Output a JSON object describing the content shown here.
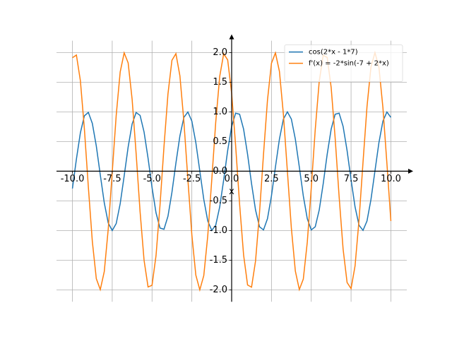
{
  "chart_data": {
    "type": "line",
    "x_label": "x",
    "x": [
      -10,
      -9.75,
      -9.5,
      -9.25,
      -9,
      -8.75,
      -8.5,
      -8.25,
      -8,
      -7.75,
      -7.5,
      -7.25,
      -7,
      -6.75,
      -6.5,
      -6.25,
      -6,
      -5.75,
      -5.5,
      -5.25,
      -5,
      -4.75,
      -4.5,
      -4.25,
      -4,
      -3.75,
      -3.5,
      -3.25,
      -3,
      -2.75,
      -2.5,
      -2.25,
      -2,
      -1.75,
      -1.5,
      -1.25,
      -1,
      -0.75,
      -0.5,
      -0.25,
      0,
      0.25,
      0.5,
      0.75,
      1,
      1.25,
      1.5,
      1.75,
      2,
      2.25,
      2.5,
      2.75,
      3,
      3.25,
      3.5,
      3.75,
      4,
      4.25,
      4.5,
      4.75,
      5,
      5.25,
      5.5,
      5.75,
      6,
      6.25,
      6.5,
      6.75,
      7,
      7.25,
      7.5,
      7.75,
      8,
      8.25,
      8.5,
      8.75,
      9,
      9.25,
      9.5,
      9.75,
      10
    ],
    "series": [
      {
        "name": "cos(2*x - 1*7)",
        "color": "#1f77b4",
        "values": [
          -0.292,
          0.203,
          0.647,
          0.933,
          0.991,
          0.806,
          0.424,
          -0.062,
          -0.533,
          -0.873,
          -1.0,
          -0.882,
          -0.548,
          -0.08,
          0.408,
          0.796,
          0.989,
          0.94,
          0.66,
          0.219,
          -0.275,
          -0.702,
          -0.958,
          -0.979,
          -0.76,
          -0.355,
          0.137,
          0.595,
          0.907,
          0.998,
          0.844,
          0.483,
          0.004,
          -0.476,
          -0.839,
          -0.997,
          -0.911,
          -0.602,
          -0.146,
          0.347,
          0.754,
          0.977,
          0.96,
          0.709,
          0.284,
          -0.211,
          -0.654,
          -0.937,
          -0.99,
          -0.801,
          -0.416,
          0.071,
          0.54,
          0.878,
          1.0,
          0.878,
          0.54,
          0.071,
          -0.416,
          -0.801,
          -0.99,
          -0.937,
          -0.654,
          -0.211,
          0.284,
          0.709,
          0.96,
          0.977,
          0.754,
          0.347,
          -0.146,
          -0.602,
          -0.911,
          -0.997,
          -0.839,
          -0.476,
          0.004,
          0.483,
          0.844,
          0.998,
          0.907
        ]
      },
      {
        "name": "f'(x) = -2*sin(-7 + 2*x)",
        "color": "#ff7f0e",
        "values": [
          1.913,
          1.958,
          1.525,
          0.718,
          -0.265,
          -1.183,
          -1.811,
          -1.996,
          -1.692,
          -0.974,
          -0.018,
          0.942,
          1.673,
          1.994,
          1.826,
          1.211,
          0.3,
          -0.685,
          -1.502,
          -1.951,
          -1.923,
          -1.424,
          -0.576,
          0.413,
          1.301,
          1.87,
          1.981,
          1.608,
          0.84,
          -0.133,
          -1.073,
          -1.751,
          -2.0,
          -1.759,
          -1.088,
          -0.15,
          0.824,
          1.597,
          1.979,
          1.876,
          1.314,
          0.43,
          -0.559,
          -1.411,
          -1.918,
          -1.955,
          -1.514,
          -0.702,
          0.282,
          1.197,
          1.819,
          1.995,
          1.683,
          0.959,
          0,
          -0.959,
          -1.683,
          -1.995,
          -1.819,
          -1.197,
          -0.282,
          0.702,
          1.514,
          1.955,
          1.918,
          1.411,
          0.559,
          -0.43,
          -1.314,
          -1.876,
          -1.979,
          -1.597,
          -0.824,
          0.15,
          1.088,
          1.759,
          2.0,
          1.751,
          1.073,
          0.133,
          -0.84
        ]
      }
    ],
    "xlim": [
      -11,
      11
    ],
    "ylim": [
      -2.2,
      2.2
    ],
    "xticks": [
      {
        "value": -10,
        "label": "-10.0"
      },
      -7.5,
      {
        "value": -5,
        "label": "-5.0"
      },
      -2.5,
      {
        "value": 0,
        "label": "0.0"
      },
      2.5,
      {
        "value": 5,
        "label": "5.0"
      },
      7.5,
      {
        "value": 10,
        "label": "10.0"
      }
    ],
    "yticks": [
      {
        "value": -2,
        "label": "-2.0"
      },
      -1.5,
      {
        "value": -1,
        "label": "-1.0"
      },
      -0.5,
      {
        "value": 0,
        "label": "0.0"
      },
      0.5,
      {
        "value": 1,
        "label": "1.0"
      },
      1.5,
      {
        "value": 2,
        "label": "2.0"
      }
    ],
    "grid": true,
    "legend": "upper right"
  }
}
